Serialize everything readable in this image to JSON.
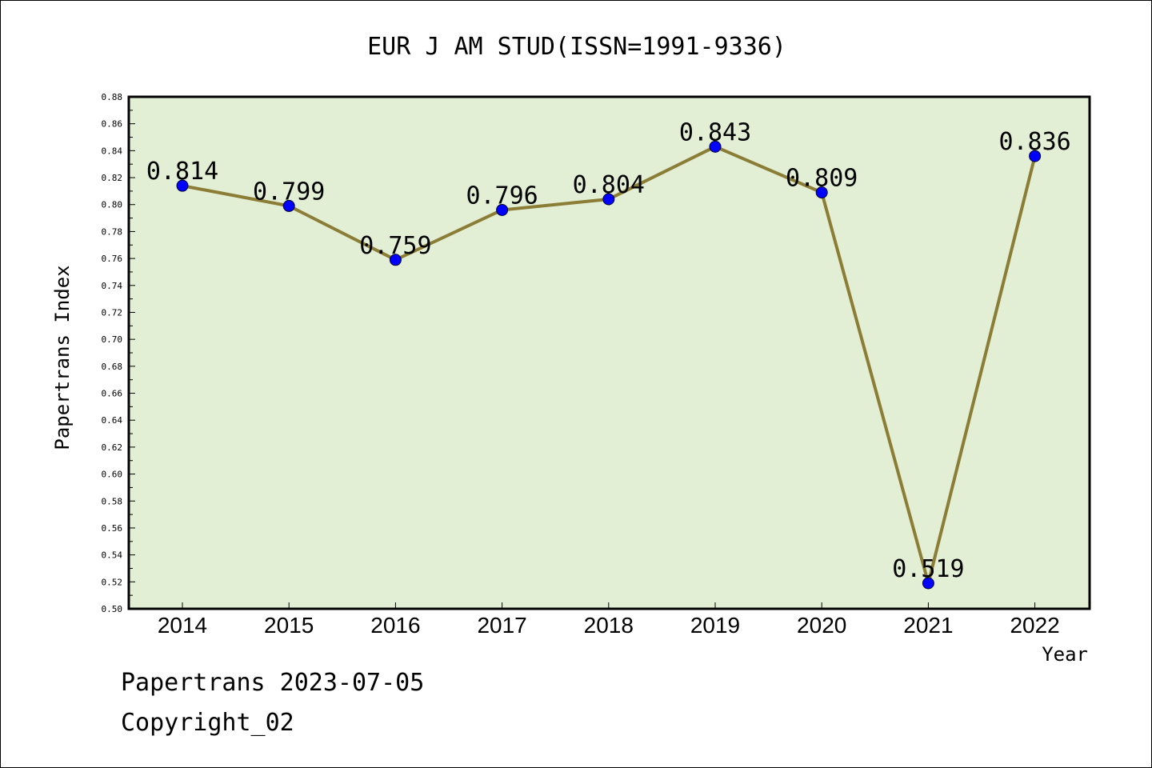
{
  "chart_data": {
    "type": "line",
    "title": "EUR J AM STUD(ISSN=1991-9336)",
    "xlabel": "Year",
    "ylabel": "Papertrans Index",
    "categories": [
      "2014",
      "2015",
      "2016",
      "2017",
      "2018",
      "2019",
      "2020",
      "2021",
      "2022"
    ],
    "values": [
      0.814,
      0.799,
      0.759,
      0.796,
      0.804,
      0.843,
      0.809,
      0.519,
      0.836
    ],
    "data_labels": [
      "0.814",
      "0.799",
      "0.759",
      "0.796",
      "0.804",
      "0.843",
      "0.809",
      "0.519",
      "0.836"
    ],
    "ylim": [
      0.5,
      0.88
    ],
    "yticks": [
      "0.50",
      "0.52",
      "0.54",
      "0.56",
      "0.58",
      "0.60",
      "0.62",
      "0.64",
      "0.66",
      "0.68",
      "0.70",
      "0.72",
      "0.74",
      "0.76",
      "0.78",
      "0.80",
      "0.82",
      "0.84",
      "0.86",
      "0.88"
    ],
    "grid": false,
    "colors": {
      "plot_background": "#e2efd4",
      "line": "#8b7d35",
      "marker": "#0000ff",
      "axis": "#000000"
    }
  },
  "footer": {
    "line1": "Papertrans 2023-07-05",
    "line2": "Copyright_02"
  }
}
